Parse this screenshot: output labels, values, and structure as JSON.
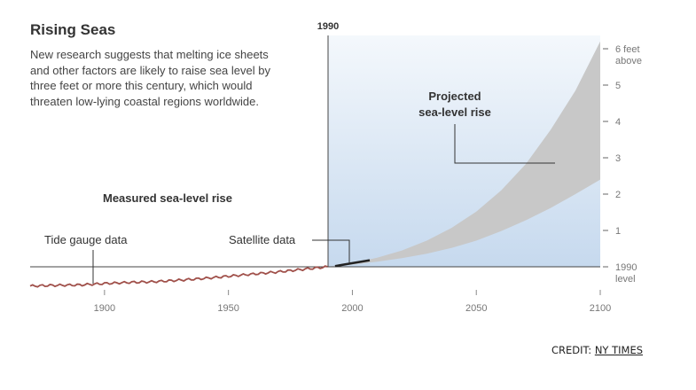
{
  "chart_data": {
    "type": "area",
    "title": "Rising Seas",
    "description": "New research suggests that melting ice sheets and other factors are likely to raise sea level by three feet or more this century, which would threaten low-lying coastal regions worldwide.",
    "xlim": [
      1870,
      2100
    ],
    "ylim": [
      -0.5,
      6.5
    ],
    "x_ticks": [
      1900,
      1950,
      2000,
      2050,
      2100
    ],
    "y_ticks": [
      {
        "value": 6,
        "label": "6 feet",
        "sublabel": "above"
      },
      {
        "value": 5,
        "label": "5"
      },
      {
        "value": 4,
        "label": "4"
      },
      {
        "value": 3,
        "label": "3"
      },
      {
        "value": 2,
        "label": "2"
      },
      {
        "value": 1,
        "label": "1"
      },
      {
        "value": 0,
        "label": "1990",
        "sublabel": "level"
      }
    ],
    "reference_year": {
      "x": 1990,
      "label": "1990"
    },
    "series": [
      {
        "name": "Tide gauge data",
        "color": "#a0504a",
        "x": [
          1870,
          1880,
          1890,
          1900,
          1910,
          1920,
          1930,
          1940,
          1950,
          1960,
          1970,
          1980,
          1990
        ],
        "y": [
          -0.53,
          -0.51,
          -0.5,
          -0.46,
          -0.43,
          -0.41,
          -0.37,
          -0.32,
          -0.26,
          -0.2,
          -0.14,
          -0.07,
          0.0
        ]
      },
      {
        "name": "Satellite data",
        "color": "#222222",
        "x": [
          1993,
          2000,
          2007
        ],
        "y": [
          0.02,
          0.1,
          0.18
        ]
      },
      {
        "name": "Projected sea-level rise",
        "color": "#c8c8c8",
        "x": [
          1990,
          2000,
          2010,
          2020,
          2030,
          2040,
          2050,
          2060,
          2070,
          2080,
          2090,
          2100
        ],
        "y_low": [
          0.0,
          0.06,
          0.14,
          0.24,
          0.36,
          0.52,
          0.72,
          0.98,
          1.28,
          1.62,
          2.0,
          2.4
        ],
        "y_high": [
          0.0,
          0.1,
          0.25,
          0.45,
          0.72,
          1.07,
          1.52,
          2.1,
          2.83,
          3.77,
          4.85,
          6.2
        ]
      }
    ],
    "annotations": [
      {
        "id": "measured",
        "text": "Measured sea-level rise"
      },
      {
        "id": "tide",
        "text": "Tide gauge data"
      },
      {
        "id": "satellite",
        "text": "Satellite data"
      },
      {
        "id": "projected",
        "lines": [
          "Projected",
          "sea-level rise"
        ]
      }
    ],
    "shading": {
      "from_color": "#c6d9ee",
      "to_color": "#f4f8fc"
    }
  },
  "credit": {
    "label": "CREDIT:",
    "source": "NY TIMES"
  }
}
